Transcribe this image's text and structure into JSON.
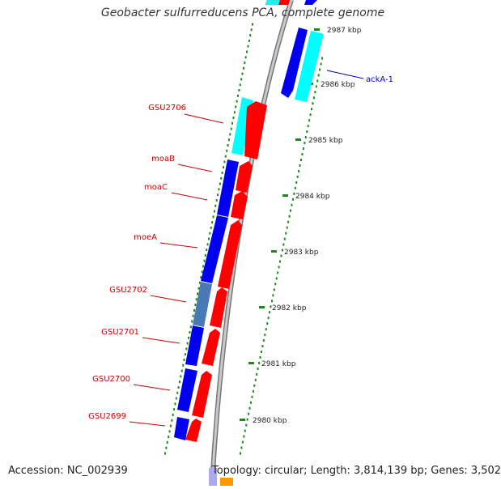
{
  "map": {
    "title": "Geobacter sulfurreducens PCA, complete genome",
    "accession": "Accession: NC_002939",
    "summary": "Topology: circular; Length: 3,814,139 bp; Genes: 3,502"
  },
  "colors": {
    "forward_cds": "#ff0000",
    "reverse_cds": "#0000ee",
    "rna": "#00ffff",
    "highlight": "#4a7ab5",
    "backbone": "#999999",
    "tick_dots": "#1a8a1a",
    "gene_label": "#cc0000",
    "blue_label": "#0000cc"
  },
  "scale_labels": [
    "2987 kbp",
    "2986 kbp",
    "2985 kbp",
    "2984 kbp",
    "2983 kbp",
    "2982 kbp",
    "2981 kbp",
    "2980 kbp"
  ],
  "gene_labels": [
    "GSU2706",
    "moaB",
    "moaC",
    "moeA",
    "GSU2702",
    "GSU2701",
    "GSU2700",
    "GSU2699"
  ],
  "right_labels": [
    "ackA-1"
  ]
}
